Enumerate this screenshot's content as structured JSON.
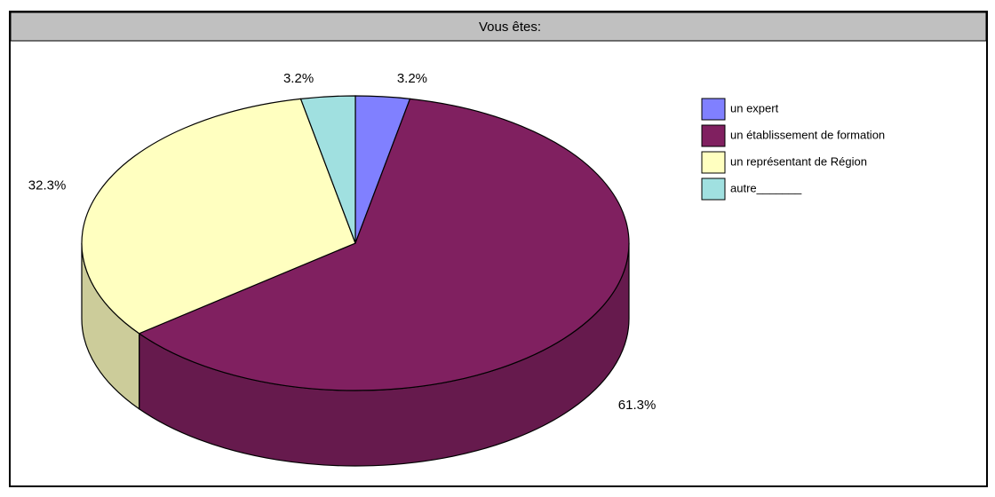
{
  "chart_data": {
    "type": "pie3d",
    "title": "Vous êtes:",
    "categories": [
      "un expert",
      "un établissement de formation",
      "un représentant de Région",
      "autre_______"
    ],
    "values": [
      3.2,
      61.3,
      32.3,
      3.2
    ],
    "value_labels": [
      "3.2%",
      "61.3%",
      "32.3%",
      "3.2%"
    ],
    "colors": [
      "#8080ff",
      "#802060",
      "#ffffc0",
      "#a0e0e0"
    ],
    "legend": "right"
  }
}
